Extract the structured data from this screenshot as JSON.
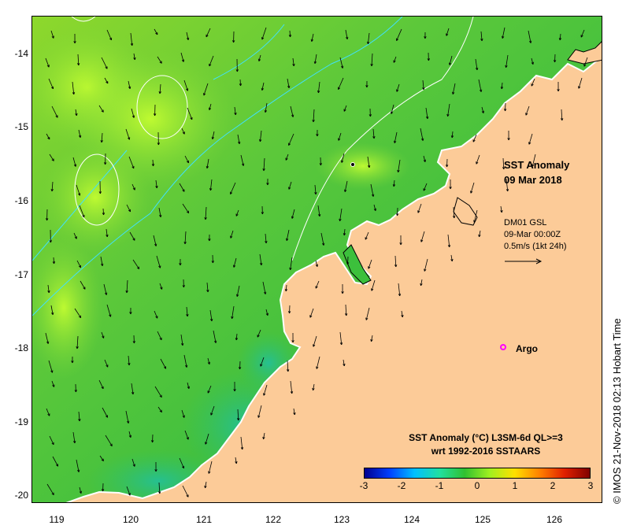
{
  "map": {
    "title_line1": "SST Anomaly",
    "title_line2": "09 Mar 2018",
    "current_source": "DM01 GSL",
    "current_time": "09-Mar 00:00Z",
    "current_scale": "0.5m/s (1kt 24h)",
    "argo_label": "Argo",
    "lon_ticks": [
      "119",
      "120",
      "121",
      "122",
      "123",
      "124",
      "125",
      "126"
    ],
    "lat_ticks": [
      "-14",
      "-15",
      "-16",
      "-17",
      "-18",
      "-19",
      "-20"
    ],
    "credit": "© IMOS 21-Nov-2018 02:13 Hobart Time",
    "colors": {
      "land": "#fccb98",
      "ocean": "#3cc03c",
      "contour": "#40e0ff",
      "argo": "#ff00ff"
    }
  },
  "colorbar": {
    "title": "SST Anomaly (°C) L3SM-6d QL>=3",
    "subtitle": "wrt 1992-2016 SSTAARS",
    "ticks": [
      "-3",
      "-2",
      "-1",
      "0",
      "1",
      "2",
      "3"
    ],
    "range": [
      -3,
      3
    ]
  }
}
